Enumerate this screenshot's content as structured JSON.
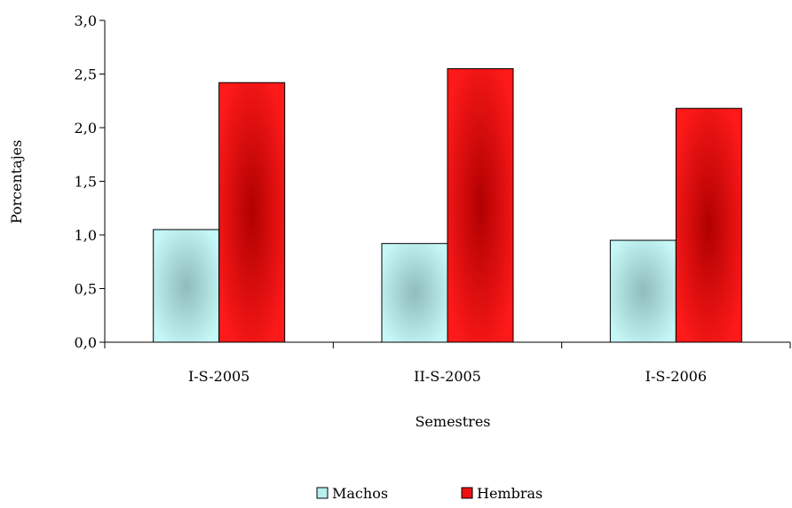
{
  "chart_data": {
    "type": "bar",
    "categories": [
      "I-S-2005",
      "II-S-2005",
      "I-S-2006"
    ],
    "series": [
      {
        "name": "Machos",
        "values": [
          1.05,
          0.92,
          0.95
        ],
        "color": "#b7efef"
      },
      {
        "name": "Hembras",
        "values": [
          2.42,
          2.55,
          2.18
        ],
        "color": "#ee1111"
      }
    ],
    "xlabel": "Semestres",
    "ylabel": "Porcentajes",
    "ylim": [
      0,
      3.0
    ],
    "yticks": [
      "0,0",
      "0,5",
      "1,0",
      "1,5",
      "2,0",
      "2,5",
      "3,0"
    ],
    "ytick_values": [
      0,
      0.5,
      1.0,
      1.5,
      2.0,
      2.5,
      3.0
    ],
    "grid": false,
    "legend_position": "bottom"
  }
}
